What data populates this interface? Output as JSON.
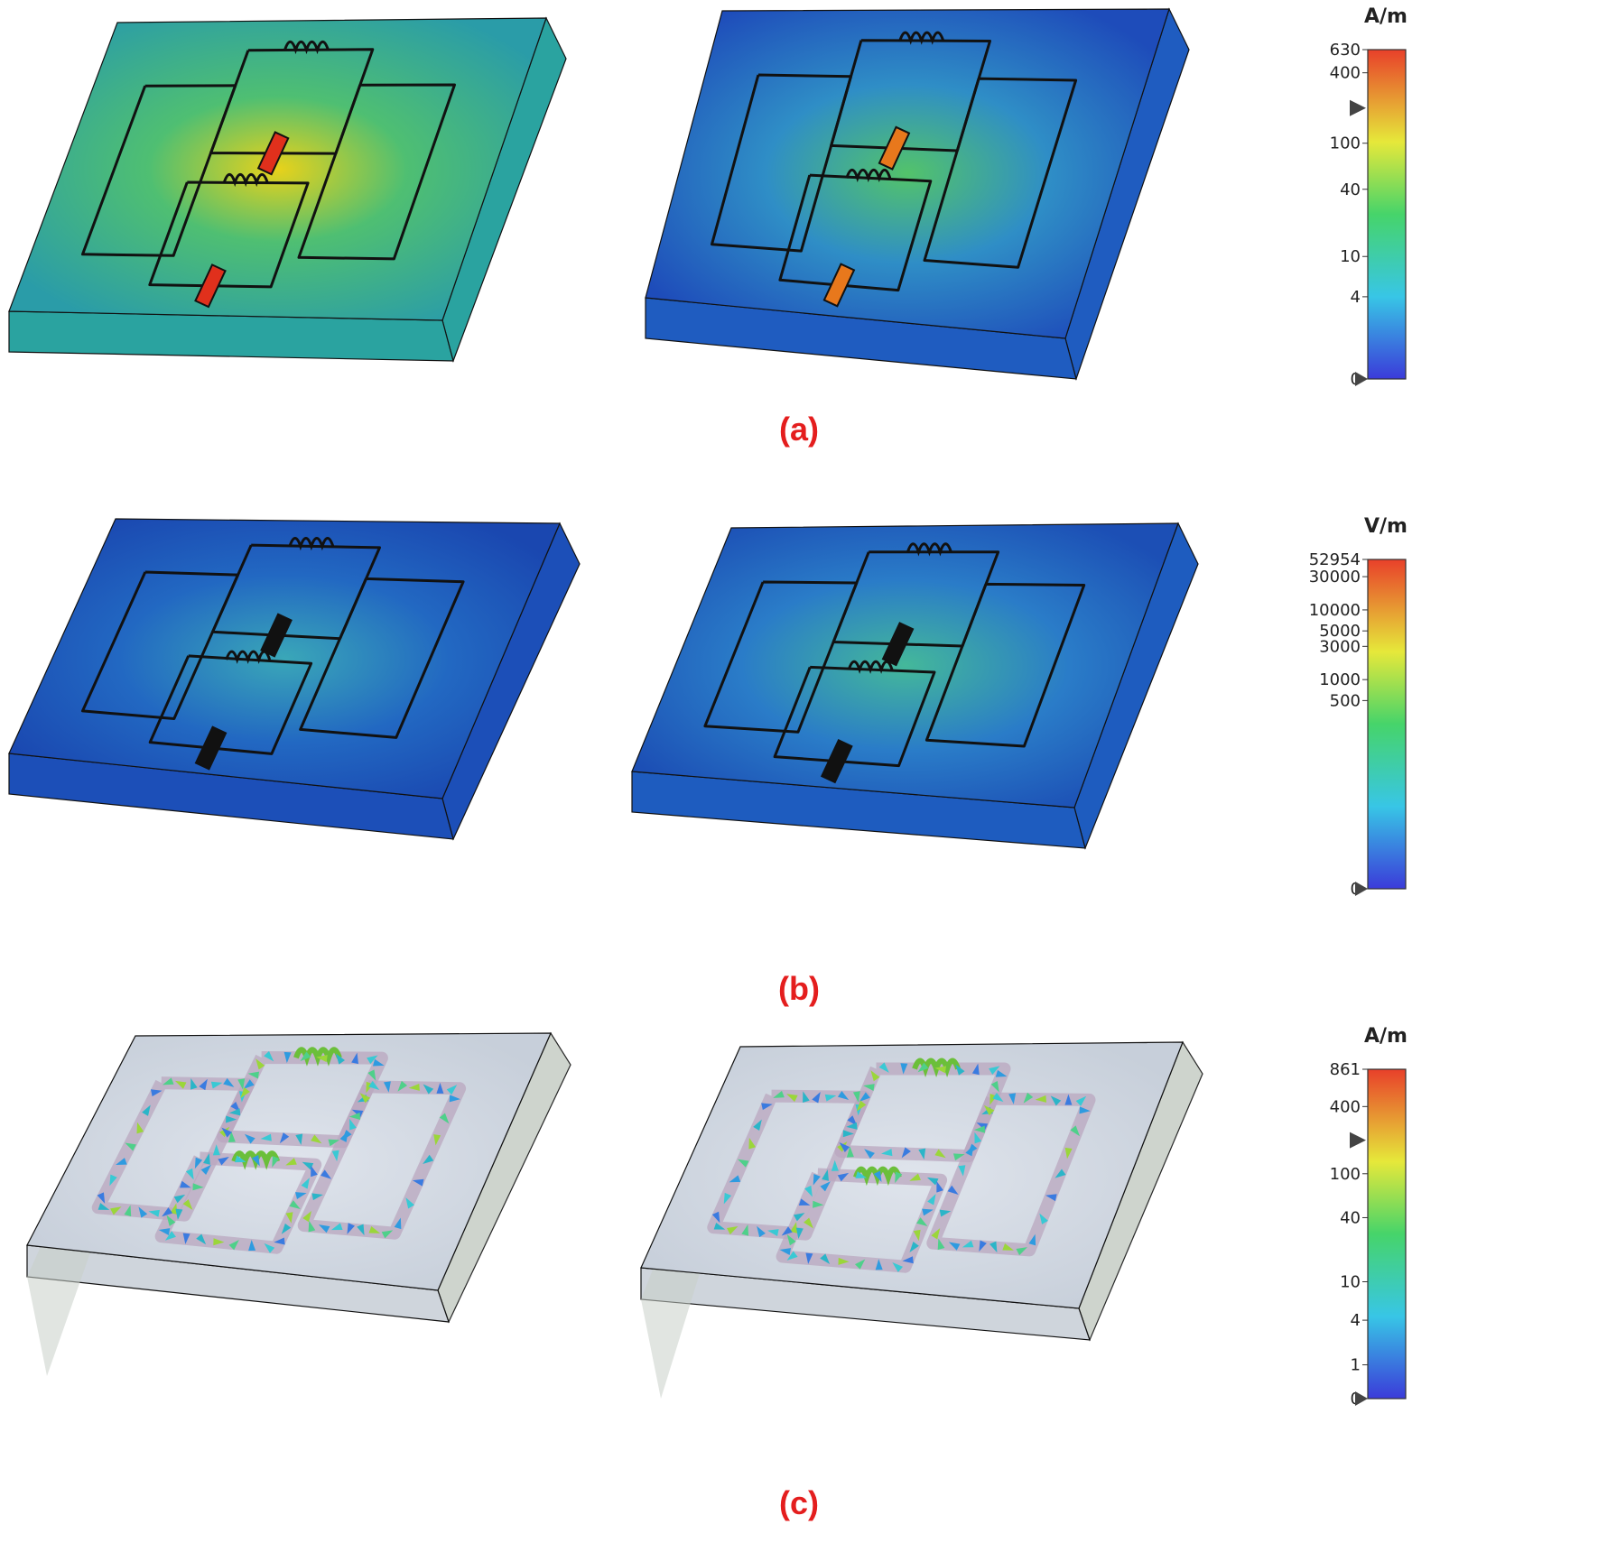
{
  "panels": [
    {
      "id": "a",
      "caption": "(a)",
      "colorbar": {
        "unit": "A/m",
        "max_label": "630",
        "ticks": [
          "400",
          "100",
          "40",
          "10",
          "4",
          "0"
        ],
        "tick_values": [
          400,
          100,
          40,
          10,
          4,
          0
        ],
        "max_value": 630,
        "marker_value": 200
      },
      "plots": [
        {
          "field_style": "hot",
          "background": "#2aa3a0"
        },
        {
          "field_style": "cool",
          "background": "#1f5cc0"
        }
      ]
    },
    {
      "id": "b",
      "caption": "(b)",
      "colorbar": {
        "unit": "V/m",
        "max_label": "52954",
        "ticks": [
          "30000",
          "10000",
          "5000",
          "3000",
          "1000",
          "500",
          "0"
        ],
        "tick_values": [
          30000,
          10000,
          5000,
          3000,
          1000,
          500,
          0
        ],
        "max_value": 52954
      },
      "plots": [
        {
          "field_style": "low",
          "background": "#1c4fb8"
        },
        {
          "field_style": "mid",
          "background": "#1e5cbf"
        }
      ]
    },
    {
      "id": "c",
      "caption": "(c)",
      "colorbar": {
        "unit": "A/m",
        "max_label": "861",
        "ticks": [
          "400",
          "100",
          "40",
          "10",
          "4",
          "1",
          "0"
        ],
        "tick_values": [
          400,
          100,
          40,
          10,
          4,
          1,
          0
        ],
        "max_value": 861,
        "marker_value": 200
      },
      "plots": [
        {
          "field_style": "vector",
          "background": "#cfd6e0"
        },
        {
          "field_style": "vector",
          "background": "#cfd6e0"
        }
      ]
    }
  ],
  "colors": {
    "caption": "#e41e1e",
    "trace": "#111111",
    "substrate_side": "#c9d0c8",
    "trace_band": "#b9a7bf"
  }
}
